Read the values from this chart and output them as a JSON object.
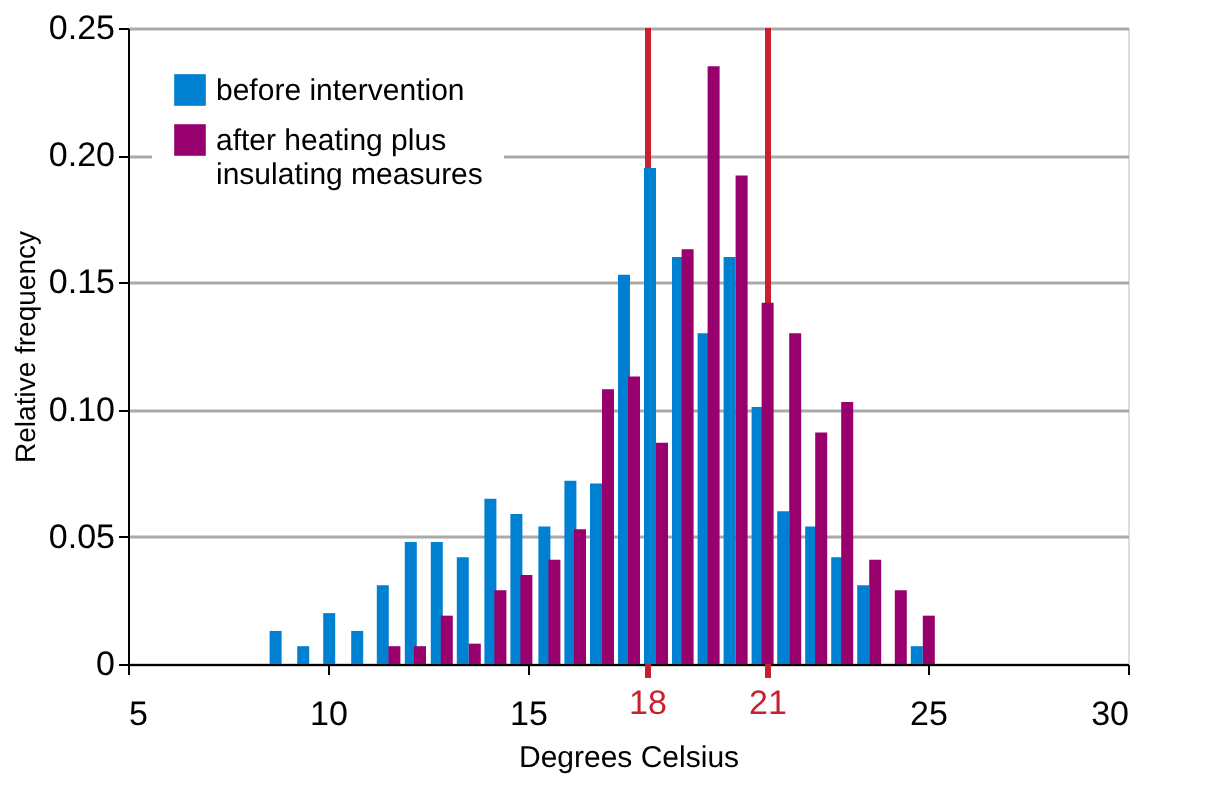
{
  "chart_data": {
    "type": "bar",
    "xlabel": "Degrees Celsius",
    "ylabel": "Relative frequency",
    "xlim": [
      5,
      30
    ],
    "xticks": [
      5,
      10,
      15,
      25,
      30
    ],
    "ylim": [
      0,
      0.25
    ],
    "yticks": [
      0,
      0.05,
      {
        "value": 0.1,
        "label": "0.10"
      },
      0.15,
      {
        "value": 0.2,
        "label": "0.20"
      },
      0.25
    ],
    "grid": "y",
    "legend": "top left",
    "series": [
      {
        "name": "before intervention",
        "color": "#0080d0",
        "x": [
          8.69,
          9.38,
          10.03,
          10.73,
          11.37,
          12.07,
          12.72,
          13.37,
          14.06,
          14.71,
          15.41,
          16.06,
          16.7,
          17.4,
          18.05,
          18.75,
          19.39,
          20.04,
          20.74,
          21.38,
          22.08,
          22.73,
          23.38,
          24.72
        ],
        "values": [
          0.013,
          0.007,
          0.02,
          0.013,
          0.031,
          0.048,
          0.048,
          0.042,
          0.065,
          0.059,
          0.054,
          0.072,
          0.071,
          0.153,
          0.195,
          0.16,
          0.13,
          0.16,
          0.101,
          0.06,
          0.054,
          0.042,
          0.031,
          0.007
        ]
      },
      {
        "name": "after heating plus insulating measures",
        "color": "#98006e",
        "x": [
          11.66,
          12.3,
          12.97,
          13.67,
          14.31,
          14.96,
          15.66,
          16.3,
          17.0,
          17.65,
          18.35,
          18.99,
          19.64,
          20.34,
          20.99,
          21.68,
          22.33,
          22.98,
          23.68,
          24.32,
          25.02
        ],
        "values": [
          0.007,
          0.007,
          0.019,
          0.008,
          0.029,
          0.035,
          0.041,
          0.053,
          0.108,
          0.113,
          0.087,
          0.163,
          0.235,
          0.192,
          0.142,
          0.13,
          0.091,
          0.103,
          0.041,
          0.029,
          0.019
        ]
      }
    ],
    "ref_lines": [
      {
        "axis": "x",
        "value": 18,
        "label": "18",
        "color": "#c8202e"
      },
      {
        "axis": "x",
        "value": 21,
        "label": "21",
        "color": "#c8202e"
      }
    ]
  }
}
